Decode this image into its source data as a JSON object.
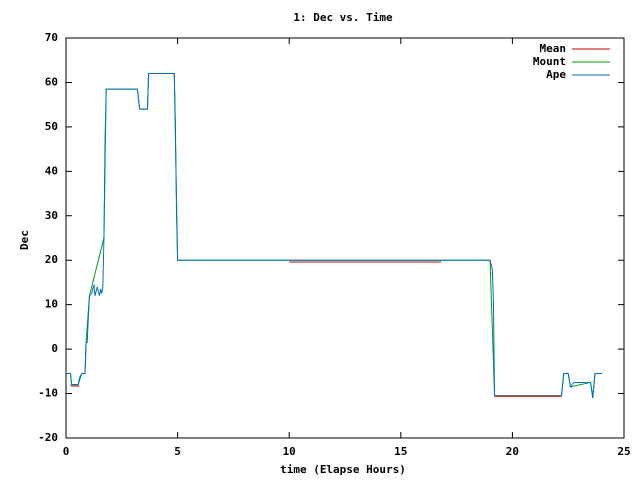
{
  "chart_data": {
    "type": "line",
    "title": "1: Dec vs. Time",
    "x_label": "time (Elapse Hours)",
    "y_label": "Dec",
    "xlim": [
      0,
      25
    ],
    "xticks": [
      0,
      5,
      10,
      15,
      20,
      25
    ],
    "ylim": [
      -20,
      70
    ],
    "yticks": [
      -20,
      -10,
      0,
      10,
      20,
      30,
      40,
      50,
      60,
      70
    ],
    "legend": "top-right",
    "series": [
      {
        "name": "Mean",
        "color": "#cc0000",
        "x": [
          0.2,
          0.6,
          null,
          10,
          16.8,
          null,
          19.2,
          22.2
        ],
        "values": [
          -8.3,
          -8.3,
          null,
          19.6,
          19.6,
          null,
          -10.6,
          -10.6
        ]
      },
      {
        "name": "Mount",
        "color": "#00a000",
        "x": [
          0,
          0.2,
          0.25,
          0.55,
          0.7,
          0.85,
          0.9,
          1.05,
          1.7,
          1.8,
          3.2,
          3.3,
          3.65,
          3.7,
          4.85,
          5.0,
          19.0,
          19.2,
          22.2,
          22.3,
          22.5,
          22.6,
          23.5,
          23.6,
          23.7,
          24
        ],
        "values": [
          -5.5,
          -5.5,
          -8,
          -8,
          -5.5,
          -5.5,
          1.5,
          12,
          25,
          58.5,
          58.5,
          54,
          54,
          62,
          62,
          20,
          20,
          -10.5,
          -10.5,
          -5.5,
          -5.5,
          -8.5,
          -7.5,
          -11,
          -5.5,
          -5.5
        ]
      },
      {
        "name": "Ape",
        "color": "#0070c0",
        "x": [
          0,
          0.2,
          0.25,
          0.55,
          0.6,
          0.7,
          0.85,
          0.9,
          0.95,
          1.0,
          1.05,
          1.15,
          1.25,
          1.3,
          1.4,
          1.5,
          1.55,
          1.6,
          1.65,
          1.7,
          1.75,
          1.8,
          3.2,
          3.3,
          3.65,
          3.7,
          4.85,
          4.9,
          4.95,
          5.0,
          19.0,
          19.1,
          19.15,
          19.2,
          22.2,
          22.3,
          22.5,
          22.6,
          22.75,
          23.5,
          23.55,
          23.6,
          23.7,
          24
        ],
        "values": [
          -5.5,
          -5.5,
          -8,
          -8,
          -6.5,
          -5.5,
          -5.5,
          1.5,
          1.5,
          7,
          12,
          12.5,
          14.5,
          12,
          14,
          12,
          13.5,
          12.5,
          14,
          25,
          47,
          58.5,
          58.5,
          54,
          54,
          62,
          62,
          51,
          31,
          20,
          20,
          18,
          11,
          -10.5,
          -10.5,
          -5.5,
          -5.5,
          -8.5,
          -7.5,
          -7.5,
          -9,
          -11,
          -5.5,
          -5.5
        ]
      }
    ]
  }
}
